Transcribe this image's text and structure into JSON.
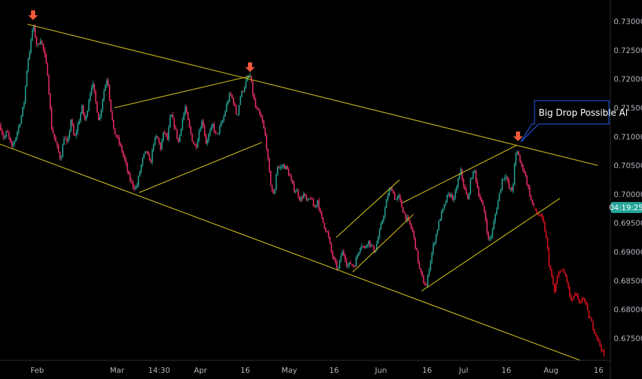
{
  "chart_data": {
    "type": "candlestick",
    "title": "",
    "xlabel": "",
    "ylabel": "",
    "ylim": [
      0.6705,
      0.7335
    ],
    "y_ticks": [
      "0.73000",
      "0.72500",
      "0.72000",
      "0.71500",
      "0.71000",
      "0.70500",
      "0.70000",
      "0.69500",
      "0.69000",
      "0.68500",
      "0.68000",
      "0.67500"
    ],
    "x_ticks": [
      "Feb",
      "Mar",
      "14:30",
      "Apr",
      "16",
      "May",
      "16",
      "Jun",
      "16",
      "Jul",
      "16",
      "Aug",
      "16"
    ],
    "current_price_label": "04:19:25",
    "current_price": 0.6977,
    "annotation": "Big Drop Possible Al",
    "colors": {
      "up": "#26a69a",
      "down": "#ef2f66",
      "forecast": "#e3101e",
      "trendline": "#c8b418",
      "arrow": "#ef5a3a",
      "badge": "#26a69a",
      "callout_border": "#2962ff"
    },
    "price_path": [
      [
        0,
        0.712
      ],
      [
        6,
        0.7095
      ],
      [
        10,
        0.711
      ],
      [
        17,
        0.708
      ],
      [
        23,
        0.71
      ],
      [
        30,
        0.713
      ],
      [
        35,
        0.716
      ],
      [
        40,
        0.723
      ],
      [
        44,
        0.7255
      ],
      [
        48,
        0.7295
      ],
      [
        54,
        0.7255
      ],
      [
        59,
        0.727
      ],
      [
        64,
        0.7245
      ],
      [
        69,
        0.721
      ],
      [
        75,
        0.7115
      ],
      [
        82,
        0.7085
      ],
      [
        88,
        0.706
      ],
      [
        93,
        0.71
      ],
      [
        98,
        0.7085
      ],
      [
        103,
        0.713
      ],
      [
        108,
        0.7095
      ],
      [
        113,
        0.712
      ],
      [
        119,
        0.715
      ],
      [
        124,
        0.7125
      ],
      [
        129,
        0.7165
      ],
      [
        134,
        0.7195
      ],
      [
        139,
        0.716
      ],
      [
        144,
        0.7125
      ],
      [
        150,
        0.7175
      ],
      [
        156,
        0.7205
      ],
      [
        160,
        0.7155
      ],
      [
        165,
        0.711
      ],
      [
        171,
        0.7095
      ],
      [
        177,
        0.7075
      ],
      [
        182,
        0.7055
      ],
      [
        187,
        0.703
      ],
      [
        193,
        0.7015
      ],
      [
        198,
        0.701
      ],
      [
        203,
        0.704
      ],
      [
        208,
        0.7065
      ],
      [
        213,
        0.7075
      ],
      [
        218,
        0.705
      ],
      [
        223,
        0.709
      ],
      [
        228,
        0.71
      ],
      [
        233,
        0.708
      ],
      [
        238,
        0.711
      ],
      [
        243,
        0.7095
      ],
      [
        248,
        0.714
      ],
      [
        254,
        0.7115
      ],
      [
        259,
        0.709
      ],
      [
        264,
        0.7125
      ],
      [
        269,
        0.715
      ],
      [
        274,
        0.712
      ],
      [
        279,
        0.7095
      ],
      [
        284,
        0.708
      ],
      [
        289,
        0.711
      ],
      [
        294,
        0.713
      ],
      [
        299,
        0.709
      ],
      [
        304,
        0.7105
      ],
      [
        309,
        0.712
      ],
      [
        314,
        0.71
      ],
      [
        319,
        0.7115
      ],
      [
        324,
        0.713
      ],
      [
        329,
        0.7155
      ],
      [
        334,
        0.7175
      ],
      [
        339,
        0.716
      ],
      [
        344,
        0.7135
      ],
      [
        349,
        0.717
      ],
      [
        354,
        0.7185
      ],
      [
        359,
        0.72
      ],
      [
        363,
        0.7205
      ],
      [
        367,
        0.7175
      ],
      [
        371,
        0.715
      ],
      [
        376,
        0.714
      ],
      [
        381,
        0.7125
      ],
      [
        386,
        0.7095
      ],
      [
        390,
        0.7045
      ],
      [
        394,
        0.701
      ],
      [
        398,
        0.6995
      ],
      [
        402,
        0.705
      ],
      [
        406,
        0.7045
      ],
      [
        411,
        0.705
      ],
      [
        416,
        0.7045
      ],
      [
        421,
        0.703
      ],
      [
        426,
        0.701
      ],
      [
        431,
        0.7005
      ],
      [
        436,
        0.699
      ],
      [
        441,
        0.7
      ],
      [
        446,
        0.6985
      ],
      [
        451,
        0.6995
      ],
      [
        456,
        0.6975
      ],
      [
        461,
        0.699
      ],
      [
        466,
        0.696
      ],
      [
        471,
        0.6945
      ],
      [
        476,
        0.693
      ],
      [
        481,
        0.69
      ],
      [
        486,
        0.688
      ],
      [
        491,
        0.687
      ],
      [
        496,
        0.69
      ],
      [
        500,
        0.6895
      ],
      [
        504,
        0.6875
      ],
      [
        509,
        0.688
      ],
      [
        514,
        0.6875
      ],
      [
        519,
        0.6895
      ],
      [
        524,
        0.6915
      ],
      [
        529,
        0.6905
      ],
      [
        534,
        0.692
      ],
      [
        539,
        0.691
      ],
      [
        544,
        0.69
      ],
      [
        549,
        0.6925
      ],
      [
        554,
        0.695
      ],
      [
        559,
        0.6975
      ],
      [
        564,
        0.7005
      ],
      [
        569,
        0.701
      ],
      [
        574,
        0.699
      ],
      [
        579,
        0.6995
      ],
      [
        584,
        0.6975
      ],
      [
        589,
        0.696
      ],
      [
        594,
        0.695
      ],
      [
        599,
        0.6935
      ],
      [
        604,
        0.6905
      ],
      [
        609,
        0.687
      ],
      [
        614,
        0.685
      ],
      [
        619,
        0.684
      ],
      [
        624,
        0.688
      ],
      [
        629,
        0.691
      ],
      [
        634,
        0.6935
      ],
      [
        639,
        0.696
      ],
      [
        644,
        0.6975
      ],
      [
        649,
        0.6995
      ],
      [
        654,
        0.7
      ],
      [
        659,
        0.699
      ],
      [
        664,
        0.702
      ],
      [
        669,
        0.704
      ],
      [
        674,
        0.701
      ],
      [
        679,
        0.699
      ],
      [
        684,
        0.703
      ],
      [
        689,
        0.704
      ],
      [
        694,
        0.7005
      ],
      [
        699,
        0.6985
      ],
      [
        704,
        0.6965
      ],
      [
        709,
        0.692
      ],
      [
        714,
        0.693
      ],
      [
        719,
        0.6965
      ],
      [
        724,
        0.6995
      ],
      [
        729,
        0.7025
      ],
      [
        734,
        0.7035
      ],
      [
        739,
        0.701
      ],
      [
        744,
        0.7005
      ],
      [
        748,
        0.7065
      ],
      [
        752,
        0.7075
      ],
      [
        756,
        0.705
      ],
      [
        760,
        0.7045
      ],
      [
        764,
        0.7025
      ],
      [
        768,
        0.7005
      ],
      [
        772,
        0.6985
      ],
      [
        776,
        0.6975
      ]
    ],
    "forecast_path": [
      [
        776,
        0.6975
      ],
      [
        781,
        0.6965
      ],
      [
        786,
        0.696
      ],
      [
        790,
        0.6945
      ],
      [
        794,
        0.6915
      ],
      [
        797,
        0.688
      ],
      [
        801,
        0.6855
      ],
      [
        805,
        0.683
      ],
      [
        809,
        0.6855
      ],
      [
        813,
        0.687
      ],
      [
        818,
        0.6865
      ],
      [
        822,
        0.6855
      ],
      [
        826,
        0.683
      ],
      [
        830,
        0.681
      ],
      [
        834,
        0.683
      ],
      [
        838,
        0.682
      ],
      [
        842,
        0.6805
      ],
      [
        846,
        0.6825
      ],
      [
        850,
        0.681
      ],
      [
        854,
        0.679
      ],
      [
        858,
        0.678
      ],
      [
        862,
        0.6765
      ],
      [
        866,
        0.6755
      ],
      [
        870,
        0.674
      ],
      [
        874,
        0.673
      ],
      [
        878,
        0.6715
      ]
    ],
    "trendlines": [
      {
        "name": "upper-channel",
        "from": [
          40,
          0.7295
        ],
        "to": [
          868,
          0.705
        ]
      },
      {
        "name": "lower-channel",
        "from": [
          0,
          0.7087
        ],
        "to": [
          842,
          0.6712
        ]
      },
      {
        "name": "rise-1-top",
        "from": [
          166,
          0.715
        ],
        "to": [
          363,
          0.7205
        ]
      },
      {
        "name": "rise-1-bottom",
        "from": [
          202,
          0.7003
        ],
        "to": [
          380,
          0.709
        ]
      },
      {
        "name": "rise-2-top",
        "from": [
          488,
          0.6925
        ],
        "to": [
          580,
          0.7025
        ]
      },
      {
        "name": "rise-2-bottom",
        "from": [
          512,
          0.6865
        ],
        "to": [
          600,
          0.6965
        ]
      },
      {
        "name": "rise-3-top",
        "from": [
          584,
          0.6985
        ],
        "to": [
          750,
          0.7085
        ]
      },
      {
        "name": "rise-3-bottom",
        "from": [
          612,
          0.6832
        ],
        "to": [
          813,
          0.6993
        ]
      }
    ],
    "peak_arrows": [
      [
        48,
        0.7295
      ],
      [
        363,
        0.7205
      ],
      [
        752,
        0.7085
      ]
    ]
  }
}
